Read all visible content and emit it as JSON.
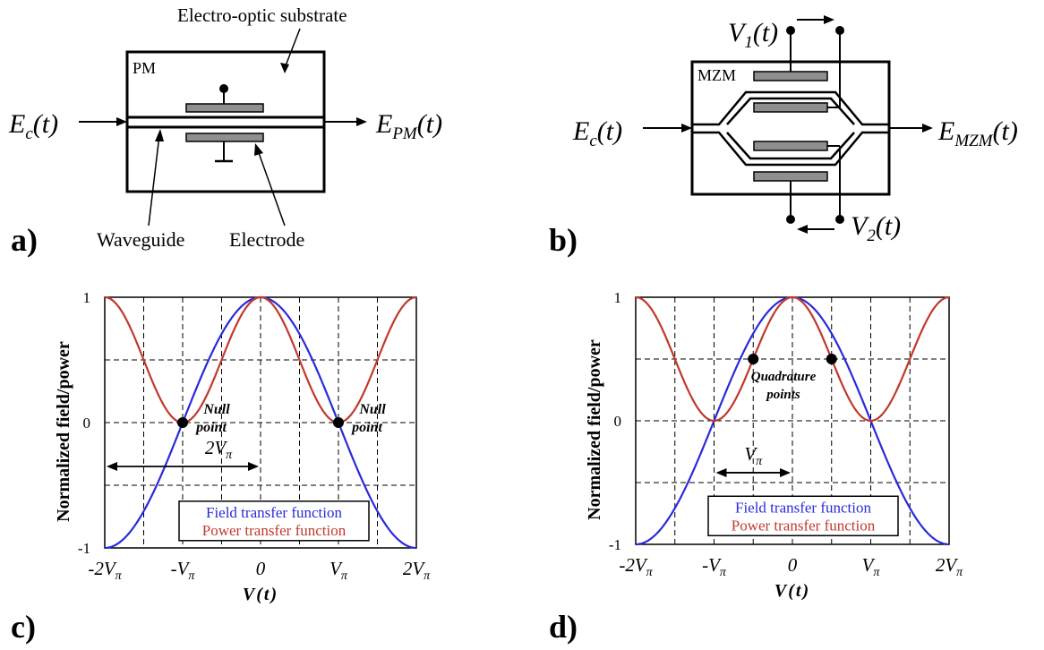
{
  "panel_a": {
    "panel_label": "a)",
    "box_label": "PM",
    "substrate_label": "Electro-optic substrate",
    "input_label": {
      "main": "E",
      "sub": "c",
      "tail": "(t)"
    },
    "output_label": {
      "main": "E",
      "sub": "PM",
      "tail": "(t)"
    },
    "waveguide_label": "Waveguide",
    "electrode_label": "Electrode"
  },
  "panel_b": {
    "panel_label": "b)",
    "box_label": "MZM",
    "input_label": {
      "main": "E",
      "sub": "c",
      "tail": "(t)"
    },
    "output_label": {
      "main": "E",
      "sub": "MZM",
      "tail": "(t)"
    },
    "v1_label": {
      "main": "V",
      "sub": "1",
      "tail": "(t)"
    },
    "v2_label": {
      "main": "V",
      "sub": "2",
      "tail": "(t)"
    }
  },
  "chart_data": [
    {
      "panel_label": "c)",
      "type": "line",
      "ylabel": "Normalized field/power",
      "xlabel": "V(t)",
      "x_range_vpi": [
        -2,
        2
      ],
      "ylim": [
        -1,
        1
      ],
      "xticks": [
        "-2Vπ",
        "-Vπ",
        "0",
        "Vπ",
        "2Vπ"
      ],
      "yticks": [
        "1",
        "0",
        "-1"
      ],
      "grid": true,
      "series": [
        {
          "name": "Field transfer function",
          "color": "#2a2adb",
          "function": "cos(pi*V/(2*Vpi))"
        },
        {
          "name": "Power transfer function",
          "color": "#c0392b",
          "function": "cos^2(pi*V/(2*Vpi))"
        }
      ],
      "points": [
        {
          "x_vpi": -1,
          "y": 0,
          "label_line1": "Null",
          "label_line2": "point"
        },
        {
          "x_vpi": 1,
          "y": 0,
          "label_line1": "Null",
          "label_line2": "point"
        }
      ],
      "span_annotation": {
        "from_vpi": -2,
        "to_vpi": 0,
        "label": "2Vπ"
      },
      "legend_placement": "bottom-center"
    },
    {
      "panel_label": "d)",
      "type": "line",
      "ylabel": "Normalized field/power",
      "xlabel": "V(t)",
      "x_range_vpi": [
        -2,
        2
      ],
      "ylim": [
        -1,
        1
      ],
      "xticks": [
        "-2Vπ",
        "-Vπ",
        "0",
        "Vπ",
        "2Vπ"
      ],
      "yticks": [
        "1",
        "0",
        "-1"
      ],
      "grid": true,
      "series": [
        {
          "name": "Field transfer function",
          "color": "#2a2adb",
          "function": "cos(pi*V/(2*Vpi))"
        },
        {
          "name": "Power transfer function",
          "color": "#c0392b",
          "function": "cos^2(pi*V/(2*Vpi))"
        }
      ],
      "points": [
        {
          "x_vpi": -0.5,
          "y": 0.5
        },
        {
          "x_vpi": 0.5,
          "y": 0.5
        }
      ],
      "point_annotation": {
        "label_line1": "Quadrature",
        "label_line2": "points"
      },
      "span_annotation": {
        "from_vpi": -1,
        "to_vpi": 0,
        "label": "Vπ"
      },
      "legend_placement": "bottom-center"
    }
  ]
}
